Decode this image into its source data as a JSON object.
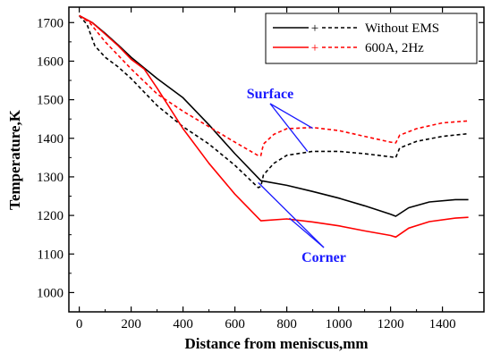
{
  "chart_data": {
    "type": "line",
    "xlabel": "Distance from meniscus,mm",
    "ylabel": "Temperature,K",
    "xlim": [
      -40,
      1560
    ],
    "ylim": [
      950,
      1740
    ],
    "xticks": [
      0,
      200,
      400,
      600,
      800,
      1000,
      1200,
      1400
    ],
    "yticks": [
      1000,
      1100,
      1200,
      1300,
      1400,
      1500,
      1600,
      1700
    ],
    "grid": false,
    "legend": {
      "position": "top-right",
      "entries": [
        {
          "marker": "+",
          "label": "Without EMS",
          "color": "#000000"
        },
        {
          "marker": "+",
          "label": "600A, 2Hz",
          "color": "#ff0000"
        }
      ]
    },
    "series": [
      {
        "group": "Without EMS",
        "location": "Corner",
        "style": "solid",
        "color": "#000000",
        "points": [
          [
            0,
            1718
          ],
          [
            50,
            1700
          ],
          [
            100,
            1672
          ],
          [
            150,
            1642
          ],
          [
            200,
            1610
          ],
          [
            300,
            1555
          ],
          [
            400,
            1505
          ],
          [
            500,
            1435
          ],
          [
            600,
            1360
          ],
          [
            700,
            1290
          ],
          [
            800,
            1278
          ],
          [
            900,
            1262
          ],
          [
            1000,
            1245
          ],
          [
            1100,
            1225
          ],
          [
            1200,
            1203
          ],
          [
            1220,
            1198
          ],
          [
            1270,
            1220
          ],
          [
            1350,
            1235
          ],
          [
            1450,
            1241
          ],
          [
            1500,
            1241
          ]
        ]
      },
      {
        "group": "Without EMS",
        "location": "Surface",
        "style": "dashed",
        "color": "#000000",
        "points": [
          [
            0,
            1718
          ],
          [
            30,
            1695
          ],
          [
            60,
            1640
          ],
          [
            100,
            1610
          ],
          [
            150,
            1585
          ],
          [
            200,
            1555
          ],
          [
            300,
            1485
          ],
          [
            400,
            1430
          ],
          [
            500,
            1385
          ],
          [
            600,
            1330
          ],
          [
            690,
            1272
          ],
          [
            700,
            1275
          ],
          [
            710,
            1305
          ],
          [
            750,
            1335
          ],
          [
            800,
            1356
          ],
          [
            900,
            1366
          ],
          [
            1000,
            1366
          ],
          [
            1100,
            1360
          ],
          [
            1200,
            1352
          ],
          [
            1220,
            1350
          ],
          [
            1235,
            1375
          ],
          [
            1300,
            1392
          ],
          [
            1400,
            1405
          ],
          [
            1500,
            1412
          ]
        ]
      },
      {
        "group": "600A, 2Hz",
        "location": "Corner",
        "style": "solid",
        "color": "#ff0000",
        "points": [
          [
            0,
            1718
          ],
          [
            50,
            1700
          ],
          [
            100,
            1670
          ],
          [
            150,
            1640
          ],
          [
            200,
            1605
          ],
          [
            250,
            1580
          ],
          [
            300,
            1530
          ],
          [
            400,
            1425
          ],
          [
            500,
            1335
          ],
          [
            600,
            1255
          ],
          [
            700,
            1186
          ],
          [
            800,
            1191
          ],
          [
            900,
            1183
          ],
          [
            1000,
            1173
          ],
          [
            1100,
            1160
          ],
          [
            1200,
            1148
          ],
          [
            1220,
            1144
          ],
          [
            1270,
            1167
          ],
          [
            1350,
            1184
          ],
          [
            1450,
            1193
          ],
          [
            1500,
            1195
          ]
        ]
      },
      {
        "group": "600A, 2Hz",
        "location": "Surface",
        "style": "dashed",
        "color": "#ff0000",
        "points": [
          [
            0,
            1718
          ],
          [
            40,
            1700
          ],
          [
            100,
            1650
          ],
          [
            200,
            1580
          ],
          [
            300,
            1515
          ],
          [
            400,
            1470
          ],
          [
            500,
            1430
          ],
          [
            600,
            1390
          ],
          [
            690,
            1355
          ],
          [
            700,
            1355
          ],
          [
            710,
            1385
          ],
          [
            750,
            1410
          ],
          [
            800,
            1425
          ],
          [
            900,
            1428
          ],
          [
            1000,
            1420
          ],
          [
            1100,
            1405
          ],
          [
            1200,
            1390
          ],
          [
            1220,
            1388
          ],
          [
            1235,
            1408
          ],
          [
            1300,
            1425
          ],
          [
            1400,
            1440
          ],
          [
            1500,
            1445
          ]
        ]
      }
    ],
    "annotations": [
      {
        "text": "Surface",
        "pointers": [
          [
            900,
            1426
          ],
          [
            880,
            1366
          ]
        ]
      },
      {
        "text": "Corner",
        "pointers": [
          [
            810,
            1193
          ],
          [
            690,
            1285
          ]
        ]
      }
    ]
  }
}
